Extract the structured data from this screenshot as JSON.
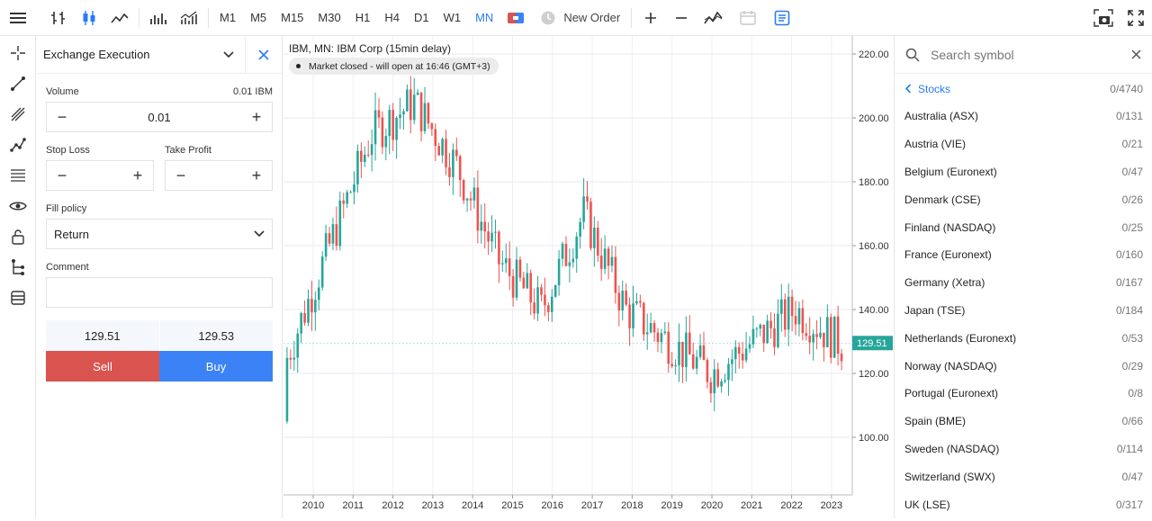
{
  "toolbar": {
    "timeframes": [
      "M1",
      "M5",
      "M15",
      "M30",
      "H1",
      "H4",
      "D1",
      "W1",
      "MN"
    ],
    "active_timeframe": "MN",
    "new_order_label": "New Order"
  },
  "order_panel": {
    "title": "Exchange Execution",
    "volume_label": "Volume",
    "volume_hint": "0.01 IBM",
    "volume_value": "0.01",
    "stop_loss_label": "Stop Loss",
    "take_profit_label": "Take Profit",
    "fill_policy_label": "Fill policy",
    "fill_policy_value": "Return",
    "comment_label": "Comment",
    "comment_value": "",
    "bid_price": "129.51",
    "ask_price": "129.53",
    "sell_label": "Sell",
    "buy_label": "Buy",
    "colors": {
      "sell": "#d9534f",
      "buy": "#3b82f6"
    }
  },
  "chart": {
    "title": "IBM, MN: IBM Corp (15min delay)",
    "market_status": "Market closed - will open at 16:46 (GMT+3)",
    "current_price": "129.51",
    "y_ticks": [
      "220.00",
      "200.00",
      "180.00",
      "160.00",
      "140.00",
      "120.00",
      "100.00"
    ],
    "x_ticks": [
      "2010",
      "2011",
      "2012",
      "2013",
      "2014",
      "2015",
      "2016",
      "2017",
      "2018",
      "2019",
      "2020",
      "2021",
      "2022",
      "2023"
    ],
    "colors": {
      "up": "#26a69a",
      "down": "#ef5350",
      "price_tag": "#26a69a"
    }
  },
  "chart_data": {
    "type": "candlestick",
    "title": "IBM, MN: IBM Corp (15min delay)",
    "x": [
      "2010",
      "2011",
      "2012",
      "2013",
      "2014",
      "2015",
      "2016",
      "2017",
      "2018",
      "2019",
      "2020",
      "2021",
      "2022",
      "2023"
    ],
    "yearly_close_approx": [
      125,
      160,
      195,
      205,
      185,
      155,
      140,
      170,
      140,
      130,
      120,
      130,
      140,
      130
    ],
    "ylim": [
      84,
      225
    ],
    "last_price": 129.51
  },
  "symbols": {
    "search_placeholder": "Search symbol",
    "category": "Stocks",
    "category_count": "0/4740",
    "items": [
      {
        "name": "Australia (ASX)",
        "count": "0/131"
      },
      {
        "name": "Austria (VIE)",
        "count": "0/21"
      },
      {
        "name": "Belgium (Euronext)",
        "count": "0/47"
      },
      {
        "name": "Denmark (CSE)",
        "count": "0/26"
      },
      {
        "name": "Finland (NASDAQ)",
        "count": "0/25"
      },
      {
        "name": "France (Euronext)",
        "count": "0/160"
      },
      {
        "name": "Germany (Xetra)",
        "count": "0/167"
      },
      {
        "name": "Japan (TSE)",
        "count": "0/184"
      },
      {
        "name": "Netherlands (Euronext)",
        "count": "0/53"
      },
      {
        "name": "Norway (NASDAQ)",
        "count": "0/29"
      },
      {
        "name": "Portugal (Euronext)",
        "count": "0/8"
      },
      {
        "name": "Spain (BME)",
        "count": "0/66"
      },
      {
        "name": "Sweden (NASDAQ)",
        "count": "0/114"
      },
      {
        "name": "Switzerland (SWX)",
        "count": "0/47"
      },
      {
        "name": "UK (LSE)",
        "count": "0/317"
      }
    ]
  }
}
